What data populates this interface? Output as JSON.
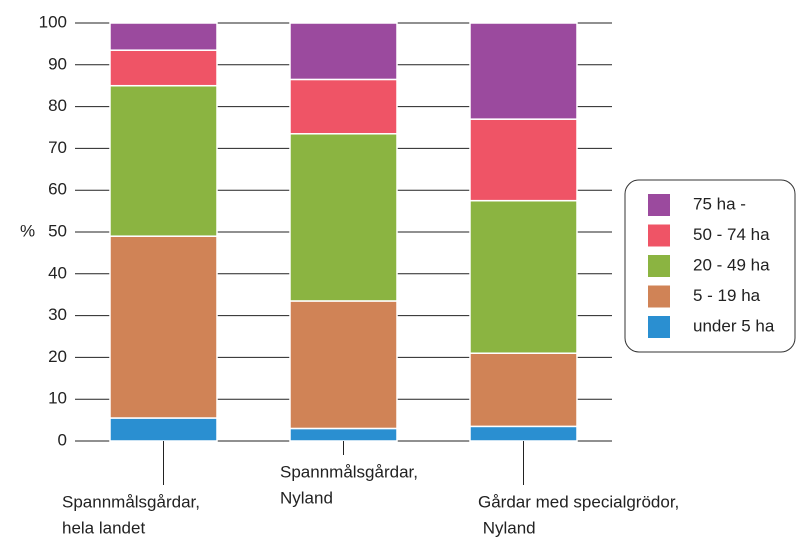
{
  "chart_data": {
    "type": "stacked_bar",
    "y_label": "%",
    "categories": [
      [
        "Spannmålsgårdar,",
        "hela landet"
      ],
      [
        "Spannmålsgårdar,",
        "Nyland"
      ],
      [
        "Gårdar med specialgrödor,",
        " Nyland"
      ]
    ],
    "series": [
      {
        "name": "under 5 ha",
        "color": "#2a8fd1",
        "values": [
          5.5,
          3,
          3.5
        ]
      },
      {
        "name": "5 - 19 ha",
        "color": "#d08356",
        "values": [
          43.5,
          30.5,
          17.5
        ]
      },
      {
        "name": "20 - 49 ha",
        "color": "#8bb441",
        "values": [
          36,
          40,
          36.5
        ]
      },
      {
        "name": "50 - 74 ha",
        "color": "#ef5466",
        "values": [
          8.5,
          13,
          19.5
        ]
      },
      {
        "name": "75 ha -",
        "color": "#9b4a9e",
        "values": [
          6.5,
          13.5,
          23
        ]
      }
    ],
    "ylim": [
      0,
      100
    ],
    "yticks": [
      0,
      10,
      20,
      30,
      40,
      50,
      60,
      70,
      80,
      90,
      100
    ],
    "grid": true,
    "legend": "right"
  }
}
